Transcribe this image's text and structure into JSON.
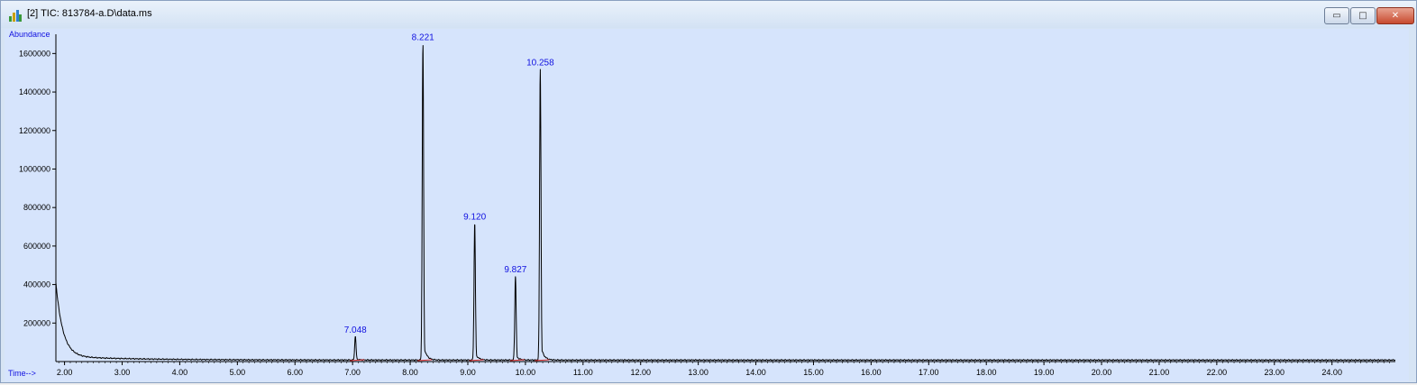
{
  "window": {
    "title": "[2] TIC: 813784-a.D\\data.ms",
    "buttons": {
      "minimize": "▭",
      "maximize": "□",
      "close": "✕"
    }
  },
  "colors": {
    "plot_bg": "#d6e4fc",
    "trace": "#000000",
    "peak_label": "#1010e0",
    "baseline_marks": "#e03030"
  },
  "chart_data": {
    "type": "line",
    "title": "",
    "ylabel": "Abundance",
    "xlabel": "Time-->",
    "xlim": [
      1.85,
      25.1
    ],
    "ylim": [
      0,
      1700000
    ],
    "x_ticks": [
      2,
      3,
      4,
      5,
      6,
      7,
      8,
      9,
      10,
      11,
      12,
      13,
      14,
      15,
      16,
      17,
      18,
      19,
      20,
      21,
      22,
      23,
      24
    ],
    "x_tick_labels": [
      "2.00",
      "3.00",
      "4.00",
      "5.00",
      "6.00",
      "7.00",
      "8.00",
      "9.00",
      "10.00",
      "11.00",
      "12.00",
      "13.00",
      "14.00",
      "15.00",
      "16.00",
      "17.00",
      "18.00",
      "19.00",
      "20.00",
      "21.00",
      "22.00",
      "23.00",
      "24.00"
    ],
    "y_ticks": [
      200000,
      400000,
      600000,
      800000,
      1000000,
      1200000,
      1400000,
      1600000
    ],
    "y_tick_labels": [
      "200000",
      "400000",
      "600000",
      "800000",
      "1000000",
      "1200000",
      "1400000",
      "1600000"
    ],
    "grid": false,
    "peaks": [
      {
        "label": "7.048",
        "x": 7.048,
        "y": 130000
      },
      {
        "label": "8.221",
        "x": 8.221,
        "y": 1650000
      },
      {
        "label": "9.120",
        "x": 9.12,
        "y": 720000
      },
      {
        "label": "9.827",
        "x": 9.827,
        "y": 445000
      },
      {
        "label": "10.258",
        "x": 10.258,
        "y": 1520000
      }
    ],
    "baseline": 8000,
    "initial_decay": {
      "start_x": 1.85,
      "start_y": 390000,
      "tail_y": 20000
    }
  }
}
